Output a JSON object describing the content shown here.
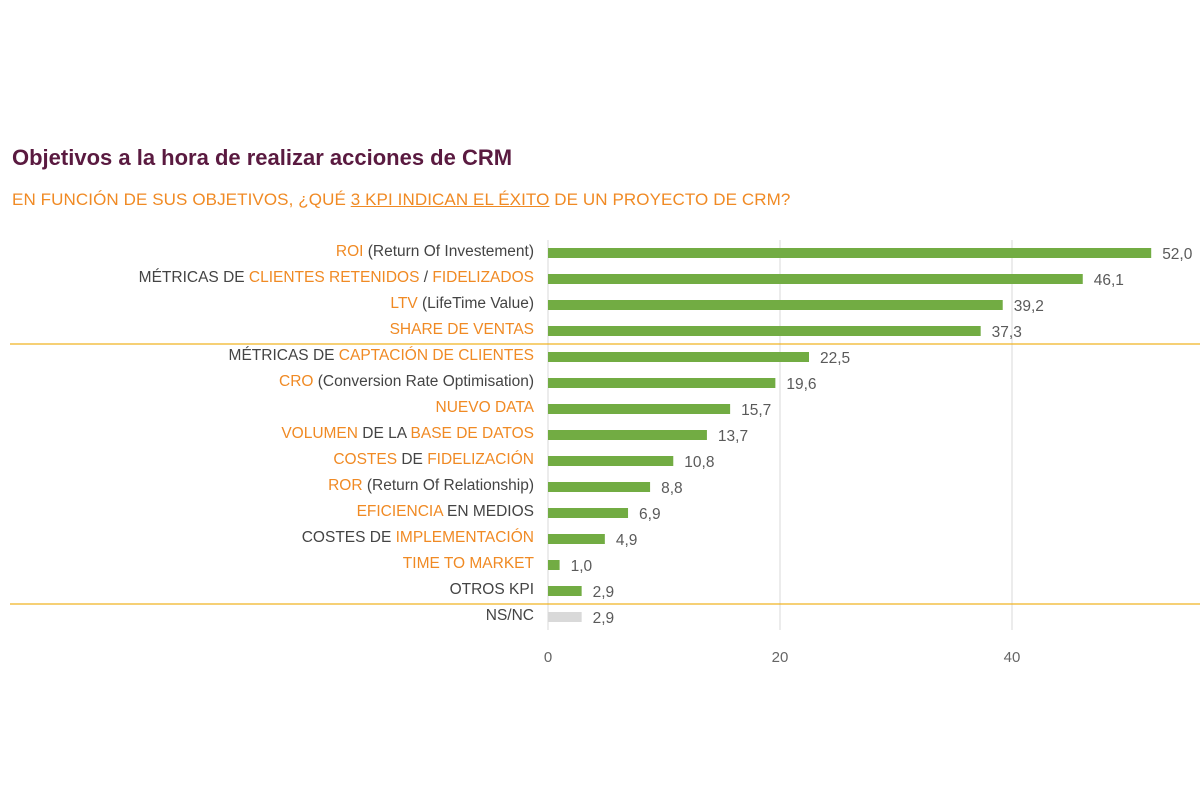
{
  "title": "Objetivos a la hora de realizar acciones de CRM",
  "subtitle": {
    "before": "EN FUNCIÓN DE SUS OBJETIVOS, ¿QUÉ ",
    "underlined": "3 KPI INDICAN EL ÉXITO",
    "after": " DE UN PROYECTO DE CRM?"
  },
  "colors": {
    "bar": "#72ac43",
    "bar_nsnc": "#d9d9d9",
    "highlight": "#f08a24",
    "text": "#444444",
    "separator": "#f0b323",
    "title": "#5a1a40",
    "grid": "#d9d9d9"
  },
  "chart_data": {
    "type": "bar",
    "orientation": "horizontal",
    "title": "Objetivos a la hora de realizar acciones de CRM",
    "subtitle": "EN FUNCIÓN DE SUS OBJETIVOS, ¿QUÉ 3 KPI INDICAN EL ÉXITO DE UN PROYECTO DE CRM?",
    "categories": [
      "ROI (Return Of Investement)",
      "MÉTRICAS DE CLIENTES RETENIDOS / FIDELIZADOS",
      "LTV (LifeTime Value)",
      "SHARE DE VENTAS",
      "MÉTRICAS DE CAPTACIÓN DE CLIENTES",
      "CRO (Conversion Rate Optimisation)",
      "NUEVO DATA",
      "VOLUMEN DE LA BASE DE DATOS",
      "COSTES DE FIDELIZACIÓN",
      "ROR (Return Of Relationship)",
      "EFICIENCIA EN MEDIOS",
      "COSTES DE IMPLEMENTACIÓN",
      "TIME TO MARKET",
      "OTROS KPI",
      "NS/NC"
    ],
    "values": [
      52.0,
      46.1,
      39.2,
      37.3,
      22.5,
      19.6,
      15.7,
      13.7,
      10.8,
      8.8,
      6.9,
      4.9,
      1.0,
      2.9,
      2.9
    ],
    "value_labels": [
      "52,0",
      "46,1",
      "39,2",
      "37,3",
      "22,5",
      "19,6",
      "15,7",
      "13,7",
      "10,8",
      "8,8",
      "6,9",
      "4,9",
      "1,0",
      "2,9",
      "2,9"
    ],
    "label_segments": [
      [
        {
          "t": "ROI",
          "h": true
        },
        {
          "t": " (Return Of Investement)",
          "h": false
        }
      ],
      [
        {
          "t": "MÉTRICAS DE ",
          "h": false
        },
        {
          "t": "CLIENTES RETENIDOS",
          "h": true
        },
        {
          "t": " / ",
          "h": false
        },
        {
          "t": "FIDELIZADOS",
          "h": true
        }
      ],
      [
        {
          "t": "LTV",
          "h": true
        },
        {
          "t": " (LifeTime Value)",
          "h": false
        }
      ],
      [
        {
          "t": "SHARE DE VENTAS",
          "h": true
        }
      ],
      [
        {
          "t": "MÉTRICAS DE ",
          "h": false
        },
        {
          "t": "CAPTACIÓN DE CLIENTES",
          "h": true
        }
      ],
      [
        {
          "t": "CRO",
          "h": true
        },
        {
          "t": " (Conversion Rate Optimisation)",
          "h": false
        }
      ],
      [
        {
          "t": "NUEVO DATA",
          "h": true
        }
      ],
      [
        {
          "t": "VOLUMEN",
          "h": true
        },
        {
          "t": " DE LA ",
          "h": false
        },
        {
          "t": "BASE DE DATOS",
          "h": true
        }
      ],
      [
        {
          "t": "COSTES",
          "h": true
        },
        {
          "t": " DE ",
          "h": false
        },
        {
          "t": "FIDELIZACIÓN",
          "h": true
        }
      ],
      [
        {
          "t": "ROR",
          "h": true
        },
        {
          "t": " (Return Of Relationship)",
          "h": false
        }
      ],
      [
        {
          "t": "EFICIENCIA",
          "h": true
        },
        {
          "t": " EN MEDIOS",
          "h": false
        }
      ],
      [
        {
          "t": "COSTES DE ",
          "h": false
        },
        {
          "t": "IMPLEMENTACIÓN",
          "h": true
        }
      ],
      [
        {
          "t": "TIME TO MARKET",
          "h": true
        }
      ],
      [
        {
          "t": "OTROS KPI",
          "h": false
        }
      ],
      [
        {
          "t": "NS/NC",
          "h": false
        }
      ]
    ],
    "gray_categories": [
      "NS/NC"
    ],
    "separators_after": [
      "SHARE DE VENTAS",
      "OTROS KPI"
    ],
    "xlim": [
      0,
      56
    ],
    "xticks": [
      0,
      20,
      40
    ],
    "xtick_labels": [
      "0",
      "20",
      "40"
    ],
    "grid": true,
    "xlabel": "",
    "ylabel": ""
  }
}
